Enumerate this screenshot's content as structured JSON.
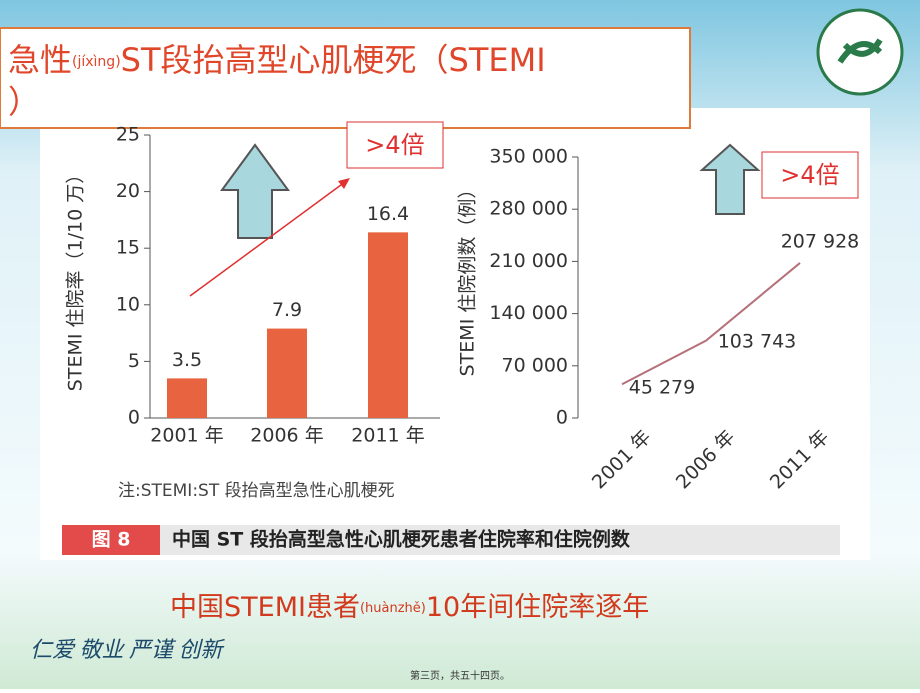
{
  "slide": {
    "title": "急性",
    "title_pinyin": "(jíxìng)",
    "title_rest": "ST段抬高型心肌梗死（STEMI",
    "title_end": "）",
    "note": "注:STEMI:ST 段抬高型急性心肌梗死",
    "figure_number": "图 8",
    "figure_caption": "中国 ST 段抬高型急性心肌梗死患者住院率和住院例数",
    "subtitle": "中国STEMI患者",
    "subtitle_pinyin": "(huànzhě)",
    "subtitle_rest": "10年间住院率逐年",
    "motto": "仁爱 敬业 严谨 创新",
    "footer": "第三页，共五十四页。"
  },
  "chart_data": [
    {
      "type": "bar",
      "y_label": "STEMI 住院率（1/10 万）",
      "categories": [
        "2001 年",
        "2006 年",
        "2011 年"
      ],
      "values": [
        3.5,
        7.9,
        16.4
      ],
      "color": "#e8633f",
      "ylim": [
        0,
        25
      ],
      "yticks": [
        0,
        5,
        10,
        15,
        20,
        25
      ],
      "annotation": ">4倍"
    },
    {
      "type": "line",
      "y_label": "STEMI 住院例数（例）",
      "categories": [
        "2001 年",
        "2006 年",
        "2011 年"
      ],
      "values": [
        45279,
        103743,
        207928
      ],
      "value_labels": [
        "45 279",
        "103 743",
        "207 928"
      ],
      "color": "#b5707a",
      "ylim": [
        0,
        350000
      ],
      "yticks": [
        0,
        {
          "value": 70000,
          "label": "70 000"
        },
        {
          "value": 140000,
          "label": "140 000"
        },
        {
          "value": 210000,
          "label": "210 000"
        },
        {
          "value": 280000,
          "label": "280 000"
        },
        {
          "value": 350000,
          "label": "350 000"
        }
      ],
      "annotation": ">4倍"
    }
  ]
}
